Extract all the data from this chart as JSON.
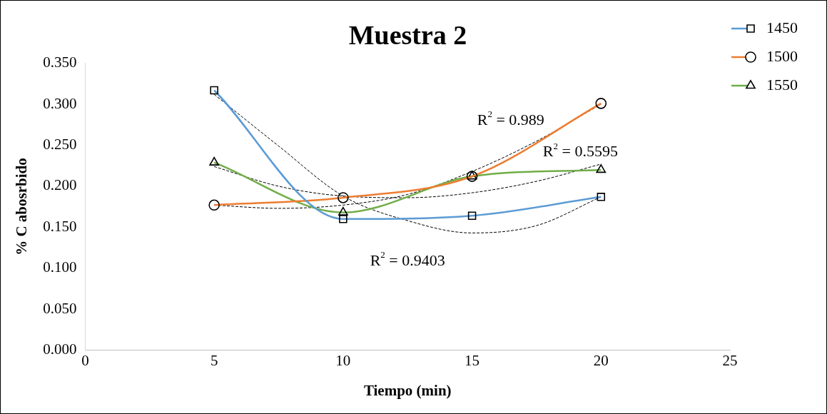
{
  "chart_data": {
    "type": "line",
    "title": "Muestra 2",
    "xlabel": "Tiempo (min)",
    "ylabel": "% C abosrbido",
    "x": [
      5,
      10,
      15,
      20
    ],
    "xlim": [
      0,
      25
    ],
    "xticks": [
      0,
      5,
      10,
      15,
      20,
      25
    ],
    "ylim": [
      0,
      0.35
    ],
    "yticks": [
      {
        "value": 0,
        "label": "0.000"
      },
      {
        "value": 0.05,
        "label": "0.050"
      },
      {
        "value": 0.1,
        "label": "0.100"
      },
      {
        "value": 0.15,
        "label": "0.150"
      },
      {
        "value": 0.2,
        "label": "0.200"
      },
      {
        "value": 0.25,
        "label": "0.250"
      },
      {
        "value": 0.3,
        "label": "0.300"
      },
      {
        "value": 0.35,
        "label": "0.350"
      }
    ],
    "grid": false,
    "legend": "top right",
    "series": [
      {
        "name": "1450",
        "color": "#5b9bd5",
        "marker": "square",
        "values": [
          0.317,
          0.16,
          0.164,
          0.187
        ]
      },
      {
        "name": "1500",
        "color": "#ed7d31",
        "marker": "circle",
        "values": [
          0.177,
          0.186,
          0.212,
          0.301
        ]
      },
      {
        "name": "1550",
        "color": "#70ad47",
        "marker": "triangle",
        "values": [
          0.229,
          0.168,
          0.212,
          0.22
        ]
      },
      {
        "color": "#000000",
        "marker": "none",
        "line_style": "dashed",
        "x": [
          5,
          7.5,
          10,
          12.5,
          15,
          17.5,
          20
        ],
        "values": [
          0.312,
          0.249,
          0.188,
          0.158,
          0.143,
          0.152,
          0.187
        ]
      },
      {
        "color": "#000000",
        "marker": "none",
        "line_style": "dashed",
        "x": [
          5,
          7.5,
          10,
          12.5,
          15,
          17.5,
          20
        ],
        "values": [
          0.177,
          0.173,
          0.177,
          0.19,
          0.218,
          0.255,
          0.3
        ]
      },
      {
        "color": "#000000",
        "marker": "none",
        "line_style": "dashed",
        "x": [
          5,
          7.5,
          10,
          12.5,
          15,
          17.5,
          20
        ],
        "values": [
          0.224,
          0.2,
          0.188,
          0.186,
          0.192,
          0.206,
          0.227
        ]
      }
    ],
    "annotations": [
      "R$^{2}$ = 0.9403",
      "R$^{2}$ = 0.989",
      "R$^{2}$ = 0.5595"
    ]
  }
}
